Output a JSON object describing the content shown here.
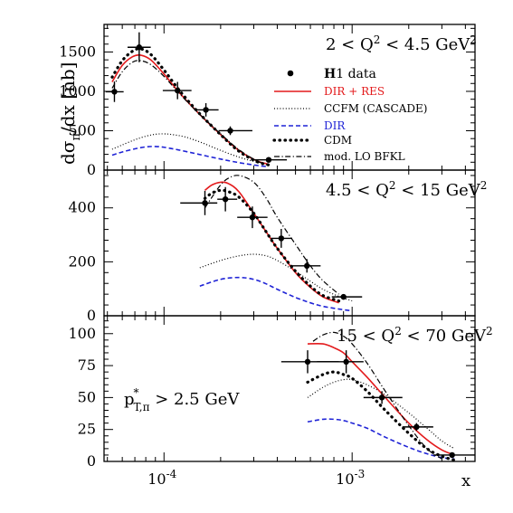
{
  "chart_data": {
    "type": "line",
    "figure_ylabel_parts": [
      "dσ",
      "π",
      "/dx [nb]"
    ],
    "x_axis": {
      "label": "x",
      "scale": "log",
      "range": [
        4.8e-05,
        0.0045
      ],
      "tick_labels": [
        {
          "value": 0.0001,
          "base": "10",
          "exp": "-4"
        },
        {
          "value": 0.001,
          "base": "10",
          "exp": "-3"
        }
      ]
    },
    "legend": {
      "placement": "top panel, right",
      "entries": [
        {
          "key": "h1",
          "label_bold": "H",
          "label": "1 data",
          "color": "#000000"
        },
        {
          "key": "dir_res",
          "label": "DIR + RES",
          "color": "#e31a1c"
        },
        {
          "key": "ccfm",
          "label": "CCFM (CASCADE)",
          "color": "#000000"
        },
        {
          "key": "dir",
          "label": "DIR",
          "color": "#1f23d6"
        },
        {
          "key": "cdm",
          "label": "CDM",
          "color": "#000000"
        },
        {
          "key": "bfkl",
          "label": "mod. LO BFKL",
          "color": "#000000"
        }
      ]
    },
    "annotation": {
      "main": "p",
      "sup": "*",
      "sub": "T,π",
      "rest": " > 2.5 GeV"
    },
    "panels": [
      {
        "title": {
          "pre": "2 < Q",
          "sup": "2",
          "post": " < 4.5 GeV",
          "sup2": "2"
        },
        "ylim": [
          0,
          1850
        ],
        "yticks": [
          0,
          500,
          1000,
          1500
        ],
        "data": [
          {
            "x": 5.45e-05,
            "xlo": 4.9e-05,
            "xhi": 6.1e-05,
            "y": 995,
            "yerr": 130
          },
          {
            "x": 7.38e-05,
            "xlo": 6.4e-05,
            "xhi": 8.5e-05,
            "y": 1560,
            "yerr": 190
          },
          {
            "x": 0.000118,
            "xlo": 9.85e-05,
            "xhi": 0.00014,
            "y": 1010,
            "yerr": 110
          },
          {
            "x": 0.000167,
            "xlo": 0.000145,
            "xhi": 0.000195,
            "y": 765,
            "yerr": 85
          },
          {
            "x": 0.000225,
            "xlo": 0.000195,
            "xhi": 0.000295,
            "y": 500,
            "yerr": 55
          },
          {
            "x": 0.00036,
            "xlo": 0.000295,
            "xhi": 0.00045,
            "y": 130,
            "yerr": 20
          }
        ],
        "curves": {
          "dir_res": {
            "x": [
              5.3e-05,
              6e-05,
              6.8e-05,
              7.5e-05,
              8.5e-05,
              0.0001,
              0.00012,
              0.00015,
              0.0002,
              0.00025,
              0.00031,
              0.00036
            ],
            "y": [
              1120,
              1330,
              1440,
              1460,
              1400,
              1220,
              990,
              740,
              450,
              250,
              120,
              75
            ]
          },
          "cdm": {
            "x": [
              5.3e-05,
              6e-05,
              6.8e-05,
              7.5e-05,
              8.5e-05,
              0.0001,
              0.00012,
              0.00015,
              0.0002,
              0.00025,
              0.00031,
              0.00036
            ],
            "y": [
              1180,
              1390,
              1510,
              1540,
              1470,
              1270,
              1020,
              750,
              450,
              240,
              110,
              65
            ]
          },
          "bfkl": {
            "x": [
              5.3e-05,
              6e-05,
              6.8e-05,
              7.5e-05,
              8.5e-05,
              0.0001,
              0.00012,
              0.00015,
              0.0002,
              0.00025,
              0.00031,
              0.00036
            ],
            "y": [
              1040,
              1250,
              1370,
              1390,
              1340,
              1190,
              980,
              740,
              460,
              260,
              120,
              60
            ]
          },
          "ccfm": {
            "x": [
              5.3e-05,
              6e-05,
              7e-05,
              8e-05,
              9e-05,
              0.0001,
              0.00011,
              0.00013,
              0.00016,
              0.0002,
              0.00025,
              0.0003,
              0.00035
            ],
            "y": [
              265,
              320,
              385,
              430,
              455,
              460,
              452,
              420,
              345,
              250,
              165,
              110,
              80
            ]
          },
          "dir": {
            "x": [
              5.3e-05,
              6e-05,
              7e-05,
              8e-05,
              9e-05,
              0.0001,
              0.00012,
              0.00015,
              0.0002,
              0.00025,
              0.0003,
              0.00035
            ],
            "y": [
              190,
              230,
              270,
              295,
              300,
              290,
              255,
              205,
              140,
              95,
              65,
              45
            ]
          }
        }
      },
      {
        "title": {
          "pre": "4.5 < Q",
          "sup": "2",
          "post": " < 15 GeV",
          "sup2": "2"
        },
        "ylim": [
          0,
          540
        ],
        "yticks": [
          0,
          200,
          400
        ],
        "data": [
          {
            "x": 0.000165,
            "xlo": 0.000122,
            "xhi": 0.000192,
            "y": 418,
            "yerr": 45
          },
          {
            "x": 0.000212,
            "xlo": 0.000192,
            "xhi": 0.000245,
            "y": 432,
            "yerr": 45
          },
          {
            "x": 0.000295,
            "xlo": 0.000245,
            "xhi": 0.000355,
            "y": 365,
            "yerr": 40
          },
          {
            "x": 0.00042,
            "xlo": 0.00037,
            "xhi": 0.00048,
            "y": 287,
            "yerr": 35
          },
          {
            "x": 0.000575,
            "xlo": 0.00048,
            "xhi": 0.00068,
            "y": 185,
            "yerr": 25
          },
          {
            "x": 0.0009,
            "xlo": 0.00078,
            "xhi": 0.00113,
            "y": 70,
            "yerr": 10
          }
        ],
        "curves": {
          "dir_res": {
            "x": [
              0.000165,
              0.00018,
              0.0002,
              0.00022,
              0.00025,
              0.0003,
              0.00035,
              0.0004,
              0.0005,
              0.0006,
              0.0007,
              0.00085
            ],
            "y": [
              465,
              485,
              495,
              490,
              460,
              380,
              310,
              250,
              160,
              105,
              70,
              48
            ]
          },
          "cdm": {
            "x": [
              0.000165,
              0.00018,
              0.0002,
              0.00022,
              0.00025,
              0.0003,
              0.00035,
              0.0004,
              0.0005,
              0.0006,
              0.0007,
              0.00085
            ],
            "y": [
              435,
              455,
              465,
              460,
              440,
              380,
              310,
              250,
              165,
              110,
              75,
              55
            ]
          },
          "bfkl": {
            "x": [
              0.000165,
              0.00018,
              0.0002,
              0.00022,
              0.00025,
              0.0003,
              0.00035,
              0.0004,
              0.0005,
              0.0006,
              0.0007,
              0.00085
            ],
            "y": [
              400,
              440,
              485,
              510,
              520,
              495,
              435,
              365,
              265,
              185,
              130,
              80
            ]
          },
          "ccfm": {
            "x": [
              0.000155,
              0.0002,
              0.00025,
              0.0003,
              0.00035,
              0.0004,
              0.0005,
              0.0006,
              0.0007,
              0.00085,
              0.001
            ],
            "y": [
              178,
              205,
              222,
              228,
              222,
              205,
              165,
              128,
              98,
              72,
              55
            ]
          },
          "dir": {
            "x": [
              0.000155,
              0.0002,
              0.00025,
              0.0003,
              0.00035,
              0.0004,
              0.0005,
              0.0006,
              0.0007,
              0.00085,
              0.001
            ],
            "y": [
              110,
              135,
              142,
              135,
              118,
              98,
              68,
              48,
              35,
              25,
              18
            ]
          }
        }
      },
      {
        "title": {
          "pre": "15 < Q",
          "sup": "2",
          "post": " < 70 GeV",
          "sup2": "2"
        },
        "ylim": [
          0,
          114
        ],
        "yticks": [
          0,
          25,
          50,
          75,
          100
        ],
        "data": [
          {
            "x": 0.00058,
            "xlo": 0.00042,
            "xhi": 0.00085,
            "y": 78,
            "yerr": 9
          },
          {
            "x": 0.00093,
            "xlo": 0.00065,
            "xhi": 0.00115,
            "y": 78,
            "yerr": 9
          },
          {
            "x": 0.00144,
            "xlo": 0.00115,
            "xhi": 0.00185,
            "y": 50,
            "yerr": 5
          },
          {
            "x": 0.0022,
            "xlo": 0.00185,
            "xhi": 0.0027,
            "y": 27,
            "yerr": 3
          },
          {
            "x": 0.0034,
            "xlo": 0.0027,
            "xhi": 0.0045,
            "y": 5,
            "yerr": 1
          }
        ],
        "curves": {
          "dir_res": {
            "x": [
              0.00058,
              0.0007,
              0.0008,
              0.0009,
              0.001,
              0.0012,
              0.0015,
              0.002,
              0.0025,
              0.003,
              0.0035
            ],
            "y": [
              92,
              92,
              89,
              85,
              78,
              66,
              50,
              30,
              17,
              9,
              5
            ]
          },
          "cdm": {
            "x": [
              0.00058,
              0.0007,
              0.0008,
              0.0009,
              0.001,
              0.0012,
              0.0015,
              0.002,
              0.0025,
              0.003,
              0.0035
            ],
            "y": [
              62,
              68,
              70,
              68,
              65,
              55,
              40,
              22,
              10,
              4,
              1
            ]
          },
          "bfkl": {
            "x": [
              0.00062,
              0.0007,
              0.0008,
              0.0009,
              0.001,
              0.0012,
              0.0015,
              0.002,
              0.0025,
              0.003
            ],
            "y": [
              94,
              99,
              101,
              98,
              92,
              77,
              55,
              28,
              10,
              2
            ]
          },
          "ccfm": {
            "x": [
              0.00058,
              0.0007,
              0.0008,
              0.0009,
              0.001,
              0.0012,
              0.0015,
              0.002,
              0.0025,
              0.003,
              0.0035
            ],
            "y": [
              50,
              58,
              62,
              64,
              64,
              60,
              52,
              38,
              26,
              16,
              10
            ]
          },
          "dir": {
            "x": [
              0.00058,
              0.0007,
              0.0008,
              0.0009,
              0.001,
              0.0012,
              0.0015,
              0.002,
              0.0025,
              0.003,
              0.0035
            ],
            "y": [
              31,
              33,
              33,
              32,
              30,
              26,
              19,
              11,
              6,
              3,
              2
            ]
          }
        }
      }
    ]
  }
}
